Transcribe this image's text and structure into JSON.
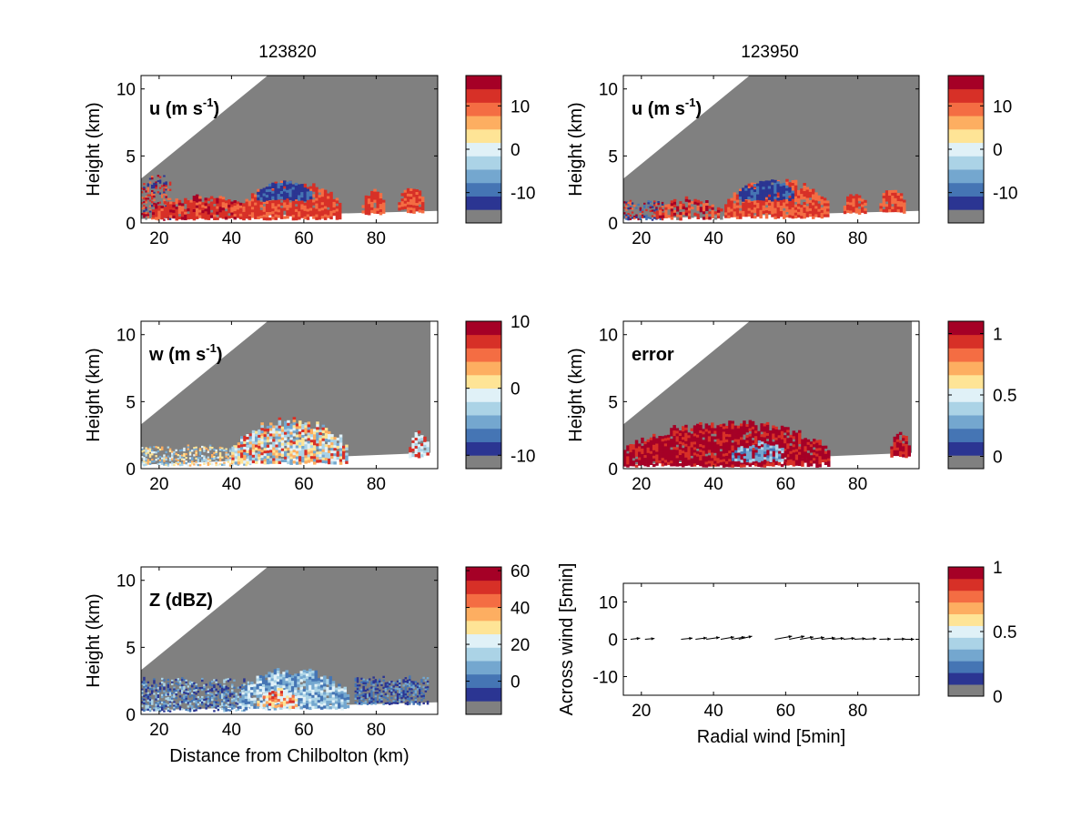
{
  "figure": {
    "columns": [
      {
        "title": "123820"
      },
      {
        "title": "123950"
      }
    ]
  },
  "colors": {
    "colormap": [
      "#808080",
      "#2b3592",
      "#4575b4",
      "#74a7cf",
      "#abd3e6",
      "#e0f1f7",
      "#fee496",
      "#fdae61",
      "#f46d43",
      "#d73027",
      "#a50026"
    ],
    "mask": "#808080",
    "wet_red": "#d62728",
    "deep_red": "#a50026",
    "mid_red": "#f46d43",
    "blue": "#2b3592"
  },
  "chart_data": [
    {
      "id": "u1",
      "type": "heatmap",
      "annotation": "u (m s",
      "annotation_sup": "-1",
      "annotation_tail": ")",
      "ylabel": "Height (km)",
      "xlabel": "",
      "xlim": [
        15,
        97
      ],
      "ylim": [
        0,
        11
      ],
      "xticks": [
        20,
        40,
        60,
        80
      ],
      "yticks": [
        0,
        5,
        10
      ],
      "cbar": {
        "ticks": [
          {
            "v": 10,
            "label": "10"
          },
          {
            "v": 0,
            "label": "0"
          },
          {
            "v": -10,
            "label": "-10"
          }
        ],
        "range": [
          -17,
          17
        ]
      },
      "beam": {
        "slope_top": 0.22,
        "x_start_top": 3.3,
        "ground_y0": 0.3,
        "ground_y1": 0.9,
        "right": 97
      }
    },
    {
      "id": "u2",
      "type": "heatmap",
      "annotation": "u (m s",
      "annotation_sup": "-1",
      "annotation_tail": ")",
      "ylabel": "Height (km)",
      "xlabel": "",
      "xlim": [
        15,
        97
      ],
      "ylim": [
        0,
        11
      ],
      "xticks": [
        20,
        40,
        60,
        80
      ],
      "yticks": [
        0,
        5,
        10
      ],
      "cbar": {
        "ticks": [
          {
            "v": 10,
            "label": "10"
          },
          {
            "v": 0,
            "label": "0"
          },
          {
            "v": -10,
            "label": "-10"
          }
        ],
        "range": [
          -17,
          17
        ]
      },
      "beam": {
        "slope_top": 0.22,
        "x_start_top": 3.3,
        "ground_y0": 0.3,
        "ground_y1": 0.9,
        "right": 97
      }
    },
    {
      "id": "w",
      "type": "heatmap",
      "annotation": "w (m s",
      "annotation_sup": "-1",
      "annotation_tail": ")",
      "ylabel": "Height (km)",
      "xlabel": "",
      "xlim": [
        15,
        97
      ],
      "ylim": [
        0,
        11
      ],
      "xticks": [
        20,
        40,
        60,
        80
      ],
      "yticks": [
        0,
        5,
        10
      ],
      "cbar": {
        "ticks": [
          {
            "v": 10,
            "label": "10"
          },
          {
            "v": 0,
            "label": "0"
          },
          {
            "v": -10,
            "label": "-10"
          }
        ],
        "range": [
          -12,
          10
        ]
      },
      "beam": {
        "slope_top": 0.22,
        "x_start_top": 3.3,
        "ground_y0": 0.3,
        "ground_y1": 1.2,
        "right": 95
      }
    },
    {
      "id": "err",
      "type": "heatmap",
      "annotation": "error",
      "annotation_sup": "",
      "annotation_tail": "",
      "ylabel": "Height (km)",
      "xlabel": "",
      "xlim": [
        15,
        97
      ],
      "ylim": [
        0,
        11
      ],
      "xticks": [
        20,
        40,
        60,
        80
      ],
      "yticks": [
        0,
        5,
        10
      ],
      "cbar": {
        "ticks": [
          {
            "v": 1,
            "label": "1"
          },
          {
            "v": 0.5,
            "label": "0.5"
          },
          {
            "v": 0,
            "label": "0"
          }
        ],
        "range": [
          -0.1,
          1.1
        ]
      },
      "beam": {
        "slope_top": 0.22,
        "x_start_top": 3.3,
        "ground_y0": 0.3,
        "ground_y1": 1.2,
        "right": 95
      }
    },
    {
      "id": "z",
      "type": "heatmap",
      "annotation": "Z (dBZ)",
      "annotation_sup": "",
      "annotation_tail": "",
      "ylabel": "Height (km)",
      "xlabel": "Distance from Chilbolton (km)",
      "xlim": [
        15,
        97
      ],
      "ylim": [
        0,
        11
      ],
      "xticks": [
        20,
        40,
        60,
        80
      ],
      "yticks": [
        0,
        5,
        10
      ],
      "cbar": {
        "ticks": [
          {
            "v": 60,
            "label": "60"
          },
          {
            "v": 40,
            "label": "40"
          },
          {
            "v": 20,
            "label": "20"
          },
          {
            "v": 0,
            "label": "0"
          }
        ],
        "range": [
          -18,
          62
        ]
      },
      "beam": {
        "slope_top": 0.22,
        "x_start_top": 3.3,
        "ground_y0": 0.3,
        "ground_y1": 0.9,
        "right": 97
      }
    },
    {
      "id": "quiver",
      "type": "scatter",
      "annotation": "",
      "ylabel": "Across wind [5min]",
      "xlabel": "Radial wind [5min]",
      "xlim": [
        15,
        97
      ],
      "ylim": [
        -15,
        15
      ],
      "xticks": [
        20,
        40,
        60,
        80
      ],
      "yticks": [
        10,
        0,
        -10
      ],
      "cbar": {
        "ticks": [
          {
            "v": 1,
            "label": "1"
          },
          {
            "v": 0.5,
            "label": "0.5"
          },
          {
            "v": 0,
            "label": "0"
          }
        ],
        "range": [
          0,
          1
        ]
      },
      "vectors": [
        {
          "x": 17,
          "u": 2.5,
          "v": 0.3
        },
        {
          "x": 21,
          "u": 2.5,
          "v": 0.2
        },
        {
          "x": 31,
          "u": 3,
          "v": 0.3
        },
        {
          "x": 35,
          "u": 3,
          "v": 0.4
        },
        {
          "x": 38,
          "u": 3.5,
          "v": 0.5
        },
        {
          "x": 42,
          "u": 3.5,
          "v": 0.6
        },
        {
          "x": 45,
          "u": 3.5,
          "v": 0.6
        },
        {
          "x": 47,
          "u": 3.5,
          "v": 0.8
        },
        {
          "x": 57,
          "u": 4.5,
          "v": 0.8
        },
        {
          "x": 61,
          "u": 4,
          "v": 0.8
        },
        {
          "x": 64,
          "u": 3.5,
          "v": 0.6
        },
        {
          "x": 67,
          "u": 3.5,
          "v": 0.5
        },
        {
          "x": 70,
          "u": 3.5,
          "v": 0.4
        },
        {
          "x": 73,
          "u": 3,
          "v": 0.3
        },
        {
          "x": 76,
          "u": 3,
          "v": 0.3
        },
        {
          "x": 79,
          "u": 3,
          "v": 0.2
        },
        {
          "x": 82,
          "u": 3,
          "v": 0.2
        },
        {
          "x": 86,
          "u": 3,
          "v": 0.1
        },
        {
          "x": 90,
          "u": 3,
          "v": 0.1
        },
        {
          "x": 93,
          "u": 2.5,
          "v": 0.0
        }
      ]
    }
  ],
  "echo_regions": {
    "u1": [
      {
        "x0": 15,
        "x1": 23,
        "y0": 0.3,
        "y1": 3.6,
        "kind": "speckle",
        "palette": [
          1,
          9,
          10,
          8,
          0
        ]
      },
      {
        "x0": 18,
        "x1": 45,
        "y0": 0.4,
        "y1": 2.2,
        "kind": "blob",
        "palette": [
          9,
          10,
          9,
          8
        ]
      },
      {
        "x0": 43,
        "x1": 70,
        "y0": 0.4,
        "y1": 3.3,
        "kind": "blob",
        "palette": [
          9,
          8,
          9
        ]
      },
      {
        "x0": 47,
        "x1": 62,
        "y0": 1.8,
        "y1": 3.2,
        "kind": "blob",
        "palette": [
          1,
          1,
          2
        ]
      },
      {
        "x0": 76,
        "x1": 82,
        "y0": 0.8,
        "y1": 2.6,
        "kind": "blob",
        "palette": [
          9,
          8
        ]
      },
      {
        "x0": 86,
        "x1": 93,
        "y0": 0.9,
        "y1": 3.0,
        "kind": "blob",
        "palette": [
          8,
          9
        ]
      }
    ],
    "u2": [
      {
        "x0": 15,
        "x1": 26,
        "y0": 0.3,
        "y1": 1.8,
        "kind": "speckle",
        "palette": [
          1,
          9,
          10,
          8,
          2
        ]
      },
      {
        "x0": 24,
        "x1": 42,
        "y0": 0.4,
        "y1": 2.0,
        "kind": "blob",
        "palette": [
          9,
          10,
          8,
          0
        ]
      },
      {
        "x0": 43,
        "x1": 72,
        "y0": 0.5,
        "y1": 3.4,
        "kind": "blob",
        "palette": [
          9,
          8
        ]
      },
      {
        "x0": 47,
        "x1": 62,
        "y0": 1.8,
        "y1": 3.3,
        "kind": "blob",
        "palette": [
          1,
          1,
          2
        ]
      },
      {
        "x0": 76,
        "x1": 82,
        "y0": 0.8,
        "y1": 2.4,
        "kind": "blob",
        "palette": [
          9,
          8
        ]
      },
      {
        "x0": 86,
        "x1": 93,
        "y0": 0.9,
        "y1": 2.8,
        "kind": "blob",
        "palette": [
          8,
          9
        ]
      }
    ],
    "w": [
      {
        "x0": 15,
        "x1": 45,
        "y0": 0.3,
        "y1": 1.8,
        "kind": "speckle",
        "palette": [
          6,
          5,
          4,
          7,
          3
        ]
      },
      {
        "x0": 40,
        "x1": 72,
        "y0": 0.5,
        "y1": 3.9,
        "kind": "blob",
        "palette": [
          6,
          5,
          4,
          3,
          7,
          9
        ]
      },
      {
        "x0": 89,
        "x1": 94,
        "y0": 1.0,
        "y1": 3.0,
        "kind": "blob",
        "palette": [
          4,
          5,
          9
        ]
      }
    ],
    "err": [
      {
        "x0": 15,
        "x1": 72,
        "y0": 0.3,
        "y1": 3.7,
        "kind": "blob",
        "palette": [
          10,
          10,
          9
        ]
      },
      {
        "x0": 45,
        "x1": 60,
        "y0": 0.6,
        "y1": 2.2,
        "kind": "blob",
        "palette": [
          3,
          4,
          2,
          10
        ]
      },
      {
        "x0": 89,
        "x1": 94,
        "y0": 1.0,
        "y1": 2.9,
        "kind": "blob",
        "palette": [
          10,
          9
        ]
      }
    ],
    "z": [
      {
        "x0": 15,
        "x1": 45,
        "y0": 0.3,
        "y1": 2.8,
        "kind": "speckle",
        "palette": [
          1,
          2,
          3,
          4
        ]
      },
      {
        "x0": 42,
        "x1": 72,
        "y0": 0.5,
        "y1": 3.6,
        "kind": "blob",
        "palette": [
          2,
          3,
          4,
          5
        ]
      },
      {
        "x0": 47,
        "x1": 58,
        "y0": 0.6,
        "y1": 2.0,
        "kind": "blob",
        "palette": [
          6,
          7,
          8,
          9,
          5
        ]
      },
      {
        "x0": 74,
        "x1": 94,
        "y0": 0.8,
        "y1": 2.9,
        "kind": "speckle",
        "palette": [
          1,
          2,
          3
        ]
      }
    ]
  }
}
